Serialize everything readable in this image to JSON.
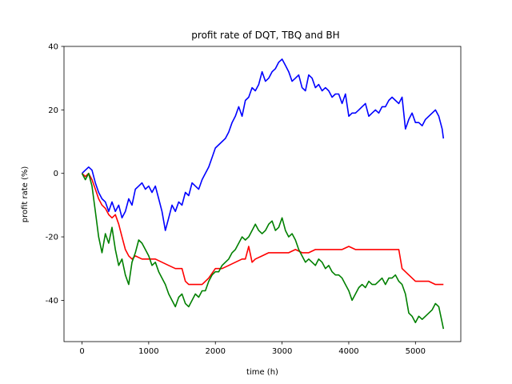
{
  "chart_data": {
    "type": "line",
    "title": "profit rate of DQT, TBQ and BH",
    "xlabel": "time (h)",
    "ylabel": "profit rate (%)",
    "xlim": [
      -270,
      5680
    ],
    "ylim": [
      -53,
      40
    ],
    "xticks": [
      0,
      1000,
      2000,
      3000,
      4000,
      5000
    ],
    "yticks": [
      -40,
      -20,
      0,
      20,
      40
    ],
    "grid": false,
    "series": [
      {
        "color": "#0000ff",
        "x": [
          0,
          50,
          100,
          150,
          200,
          250,
          300,
          350,
          400,
          450,
          500,
          550,
          600,
          650,
          700,
          750,
          800,
          850,
          900,
          950,
          1000,
          1050,
          1100,
          1150,
          1200,
          1250,
          1300,
          1350,
          1400,
          1450,
          1500,
          1550,
          1600,
          1650,
          1700,
          1750,
          1800,
          1850,
          1900,
          1950,
          2000,
          2050,
          2100,
          2150,
          2200,
          2250,
          2300,
          2350,
          2400,
          2450,
          2500,
          2550,
          2600,
          2650,
          2700,
          2750,
          2800,
          2850,
          2900,
          2950,
          3000,
          3050,
          3100,
          3150,
          3200,
          3250,
          3300,
          3350,
          3400,
          3450,
          3500,
          3550,
          3600,
          3650,
          3700,
          3750,
          3800,
          3850,
          3900,
          3950,
          4000,
          4050,
          4100,
          4150,
          4200,
          4250,
          4300,
          4350,
          4400,
          4450,
          4500,
          4550,
          4600,
          4650,
          4700,
          4750,
          4800,
          4850,
          4900,
          4950,
          5000,
          5050,
          5100,
          5150,
          5200,
          5250,
          5300,
          5350,
          5400,
          5420
        ],
        "values": [
          0,
          1,
          2,
          1,
          -3,
          -6,
          -8,
          -9,
          -12,
          -9,
          -12,
          -10,
          -14,
          -12,
          -8,
          -10,
          -5,
          -4,
          -3,
          -5,
          -4,
          -6,
          -4,
          -8,
          -12,
          -18,
          -14,
          -10,
          -12,
          -9,
          -10,
          -6,
          -7,
          -3,
          -4,
          -5,
          -2,
          0,
          2,
          5,
          8,
          9,
          10,
          11,
          13,
          16,
          18,
          21,
          18,
          23,
          24,
          27,
          26,
          28,
          32,
          29,
          30,
          32,
          33,
          35,
          36,
          34,
          32,
          29,
          30,
          31,
          27,
          26,
          31,
          30,
          27,
          28,
          26,
          27,
          26,
          24,
          25,
          25,
          22,
          25,
          18,
          19,
          19,
          20,
          21,
          22,
          18,
          19,
          20,
          19,
          21,
          21,
          23,
          24,
          23,
          22,
          24,
          14,
          17,
          19,
          16,
          16,
          15,
          17,
          18,
          19,
          20,
          18,
          14,
          11
        ]
      },
      {
        "color": "#ff0000",
        "x": [
          0,
          50,
          100,
          150,
          200,
          250,
          300,
          350,
          400,
          450,
          500,
          550,
          600,
          650,
          700,
          750,
          800,
          900,
          1000,
          1100,
          1200,
          1300,
          1400,
          1500,
          1550,
          1600,
          1700,
          1800,
          1900,
          2000,
          2100,
          2200,
          2300,
          2400,
          2450,
          2500,
          2550,
          2600,
          2700,
          2800,
          2900,
          3000,
          3100,
          3200,
          3300,
          3400,
          3500,
          3600,
          3700,
          3800,
          3900,
          4000,
          4100,
          4200,
          4300,
          4400,
          4500,
          4600,
          4700,
          4750,
          4800,
          4850,
          4900,
          4950,
          5000,
          5100,
          5200,
          5300,
          5400,
          5420
        ],
        "values": [
          0,
          -1,
          0,
          -2,
          -5,
          -8,
          -10,
          -11,
          -13,
          -14,
          -13,
          -16,
          -20,
          -24,
          -26,
          -27,
          -26,
          -27,
          -27,
          -27,
          -28,
          -29,
          -30,
          -30,
          -34,
          -35,
          -35,
          -35,
          -33,
          -30,
          -30,
          -29,
          -28,
          -27,
          -27,
          -23,
          -28,
          -27,
          -26,
          -25,
          -25,
          -25,
          -25,
          -24,
          -25,
          -25,
          -24,
          -24,
          -24,
          -24,
          -24,
          -23,
          -24,
          -24,
          -24,
          -24,
          -24,
          -24,
          -24,
          -24,
          -30,
          -31,
          -32,
          -33,
          -34,
          -34,
          -34,
          -35,
          -35,
          -35
        ]
      },
      {
        "color": "#008000",
        "x": [
          0,
          50,
          100,
          150,
          200,
          250,
          300,
          350,
          400,
          450,
          500,
          550,
          600,
          650,
          700,
          750,
          800,
          850,
          900,
          950,
          1000,
          1050,
          1100,
          1150,
          1200,
          1250,
          1300,
          1350,
          1400,
          1450,
          1500,
          1550,
          1600,
          1650,
          1700,
          1750,
          1800,
          1850,
          1900,
          1950,
          2000,
          2050,
          2100,
          2150,
          2200,
          2250,
          2300,
          2350,
          2400,
          2450,
          2500,
          2550,
          2600,
          2650,
          2700,
          2750,
          2800,
          2850,
          2900,
          2950,
          3000,
          3050,
          3100,
          3150,
          3200,
          3250,
          3300,
          3350,
          3400,
          3450,
          3500,
          3550,
          3600,
          3650,
          3700,
          3750,
          3800,
          3850,
          3900,
          3950,
          4000,
          4050,
          4100,
          4150,
          4200,
          4250,
          4300,
          4350,
          4400,
          4450,
          4500,
          4550,
          4600,
          4650,
          4700,
          4750,
          4800,
          4850,
          4900,
          4950,
          5000,
          5050,
          5100,
          5150,
          5200,
          5250,
          5300,
          5350,
          5400,
          5420
        ],
        "values": [
          0,
          -2,
          0,
          -4,
          -12,
          -20,
          -25,
          -19,
          -22,
          -17,
          -24,
          -29,
          -27,
          -32,
          -35,
          -28,
          -25,
          -21,
          -22,
          -24,
          -26,
          -29,
          -28,
          -31,
          -33,
          -35,
          -38,
          -40,
          -42,
          -39,
          -38,
          -41,
          -42,
          -40,
          -38,
          -39,
          -37,
          -37,
          -34,
          -32,
          -31,
          -31,
          -29,
          -28,
          -27,
          -25,
          -24,
          -22,
          -20,
          -21,
          -20,
          -18,
          -16,
          -18,
          -19,
          -18,
          -16,
          -15,
          -18,
          -17,
          -14,
          -18,
          -20,
          -19,
          -21,
          -24,
          -26,
          -28,
          -27,
          -28,
          -29,
          -27,
          -28,
          -30,
          -29,
          -31,
          -32,
          -32,
          -33,
          -35,
          -37,
          -40,
          -38,
          -36,
          -35,
          -36,
          -34,
          -35,
          -35,
          -34,
          -33,
          -35,
          -33,
          -33,
          -32,
          -34,
          -35,
          -38,
          -44,
          -45,
          -47,
          -45,
          -46,
          -45,
          -44,
          -43,
          -41,
          -42,
          -47,
          -49
        ]
      }
    ]
  }
}
